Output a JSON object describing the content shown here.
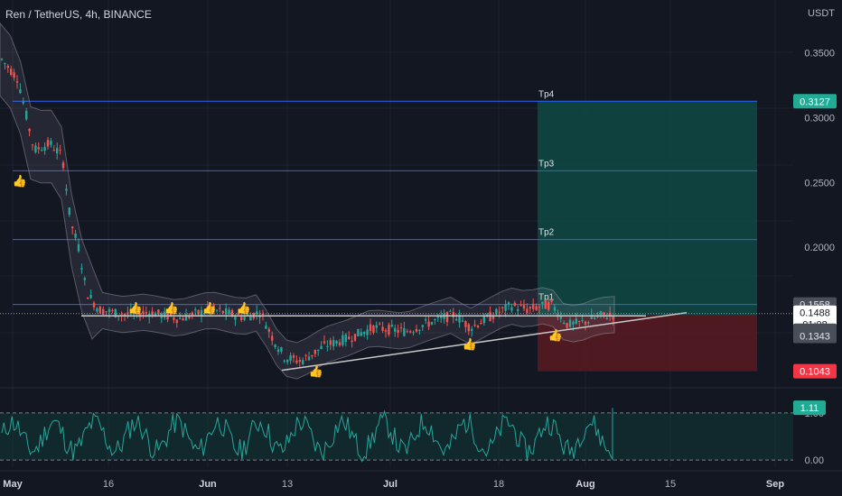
{
  "header": {
    "title": "Ren / TetherUS, 4h, BINANCE",
    "currency": "USDT"
  },
  "colors": {
    "background": "#131722",
    "grid": "#1e222d",
    "text": "#b2b5be",
    "up": "#26a69a",
    "down": "#ef5350",
    "level_line": "#2962ff",
    "target_zone": "#0f4a43",
    "stop_zone": "#5a1a22",
    "rsi_line": "#26a69a",
    "trendline": "#c8c8c8"
  },
  "chart_data": {
    "type": "candlestick",
    "price_axis": {
      "ticks": [
        {
          "label": "0.3500",
          "value": 0.35
        },
        {
          "label": "0.3000",
          "value": 0.3
        },
        {
          "label": "0.2500",
          "value": 0.25
        },
        {
          "label": "0.2000",
          "value": 0.2
        }
      ],
      "range": [
        0.095,
        0.37
      ]
    },
    "time_axis": {
      "labels": [
        {
          "label": "May",
          "bold": true
        },
        {
          "label": "16",
          "bold": false
        },
        {
          "label": "Jun",
          "bold": true
        },
        {
          "label": "13",
          "bold": false
        },
        {
          "label": "Jul",
          "bold": true
        },
        {
          "label": "18",
          "bold": false
        },
        {
          "label": "Aug",
          "bold": true
        },
        {
          "label": "15",
          "bold": false
        },
        {
          "label": "Sep",
          "bold": true
        }
      ]
    },
    "targets": [
      {
        "label": "Tp4",
        "value": 0.3127
      },
      {
        "label": "Tp3",
        "value": 0.259
      },
      {
        "label": "Tp2",
        "value": 0.206
      },
      {
        "label": "Tp1",
        "value": 0.1558
      }
    ],
    "current_price": 0.1488,
    "countdown": "01:08",
    "entry": 0.1474,
    "stop": 0.1043,
    "price_badges": [
      {
        "label": "0.3127",
        "kind": "green"
      },
      {
        "label": "0.1558",
        "kind": "grey"
      },
      {
        "label": "0.1488",
        "kind": "white"
      },
      {
        "label": "01:08",
        "kind": "white"
      },
      {
        "label": "0.1474",
        "kind": "grey"
      },
      {
        "label": "0.1408",
        "kind": "grey"
      },
      {
        "label": "0.1343",
        "kind": "grey"
      },
      {
        "label": "0.1043",
        "kind": "red"
      }
    ],
    "path_keypoints": [
      [
        0,
        0.345
      ],
      [
        0.02,
        0.33
      ],
      [
        0.04,
        0.275
      ],
      [
        0.06,
        0.28
      ],
      [
        0.075,
        0.27
      ],
      [
        0.085,
        0.22
      ],
      [
        0.095,
        0.2
      ],
      [
        0.105,
        0.165
      ],
      [
        0.12,
        0.152
      ],
      [
        0.15,
        0.148
      ],
      [
        0.18,
        0.15
      ],
      [
        0.22,
        0.145
      ],
      [
        0.26,
        0.152
      ],
      [
        0.3,
        0.146
      ],
      [
        0.32,
        0.15
      ],
      [
        0.335,
        0.13
      ],
      [
        0.35,
        0.115
      ],
      [
        0.37,
        0.112
      ],
      [
        0.4,
        0.124
      ],
      [
        0.43,
        0.13
      ],
      [
        0.46,
        0.138
      ],
      [
        0.5,
        0.135
      ],
      [
        0.53,
        0.142
      ],
      [
        0.56,
        0.148
      ],
      [
        0.58,
        0.138
      ],
      [
        0.6,
        0.145
      ],
      [
        0.63,
        0.155
      ],
      [
        0.65,
        0.152
      ],
      [
        0.68,
        0.156
      ],
      [
        0.7,
        0.14
      ],
      [
        0.72,
        0.142
      ],
      [
        0.74,
        0.147
      ],
      [
        0.76,
        0.148
      ]
    ],
    "rsi": {
      "ticks": [
        {
          "label": "1.00",
          "value": 1.0
        },
        {
          "label": "0.00",
          "value": 0.0
        }
      ],
      "range": [
        -0.15,
        1.4
      ],
      "current": 1.11,
      "current_label": "1.11"
    },
    "thumbs_up_markers": 9
  }
}
